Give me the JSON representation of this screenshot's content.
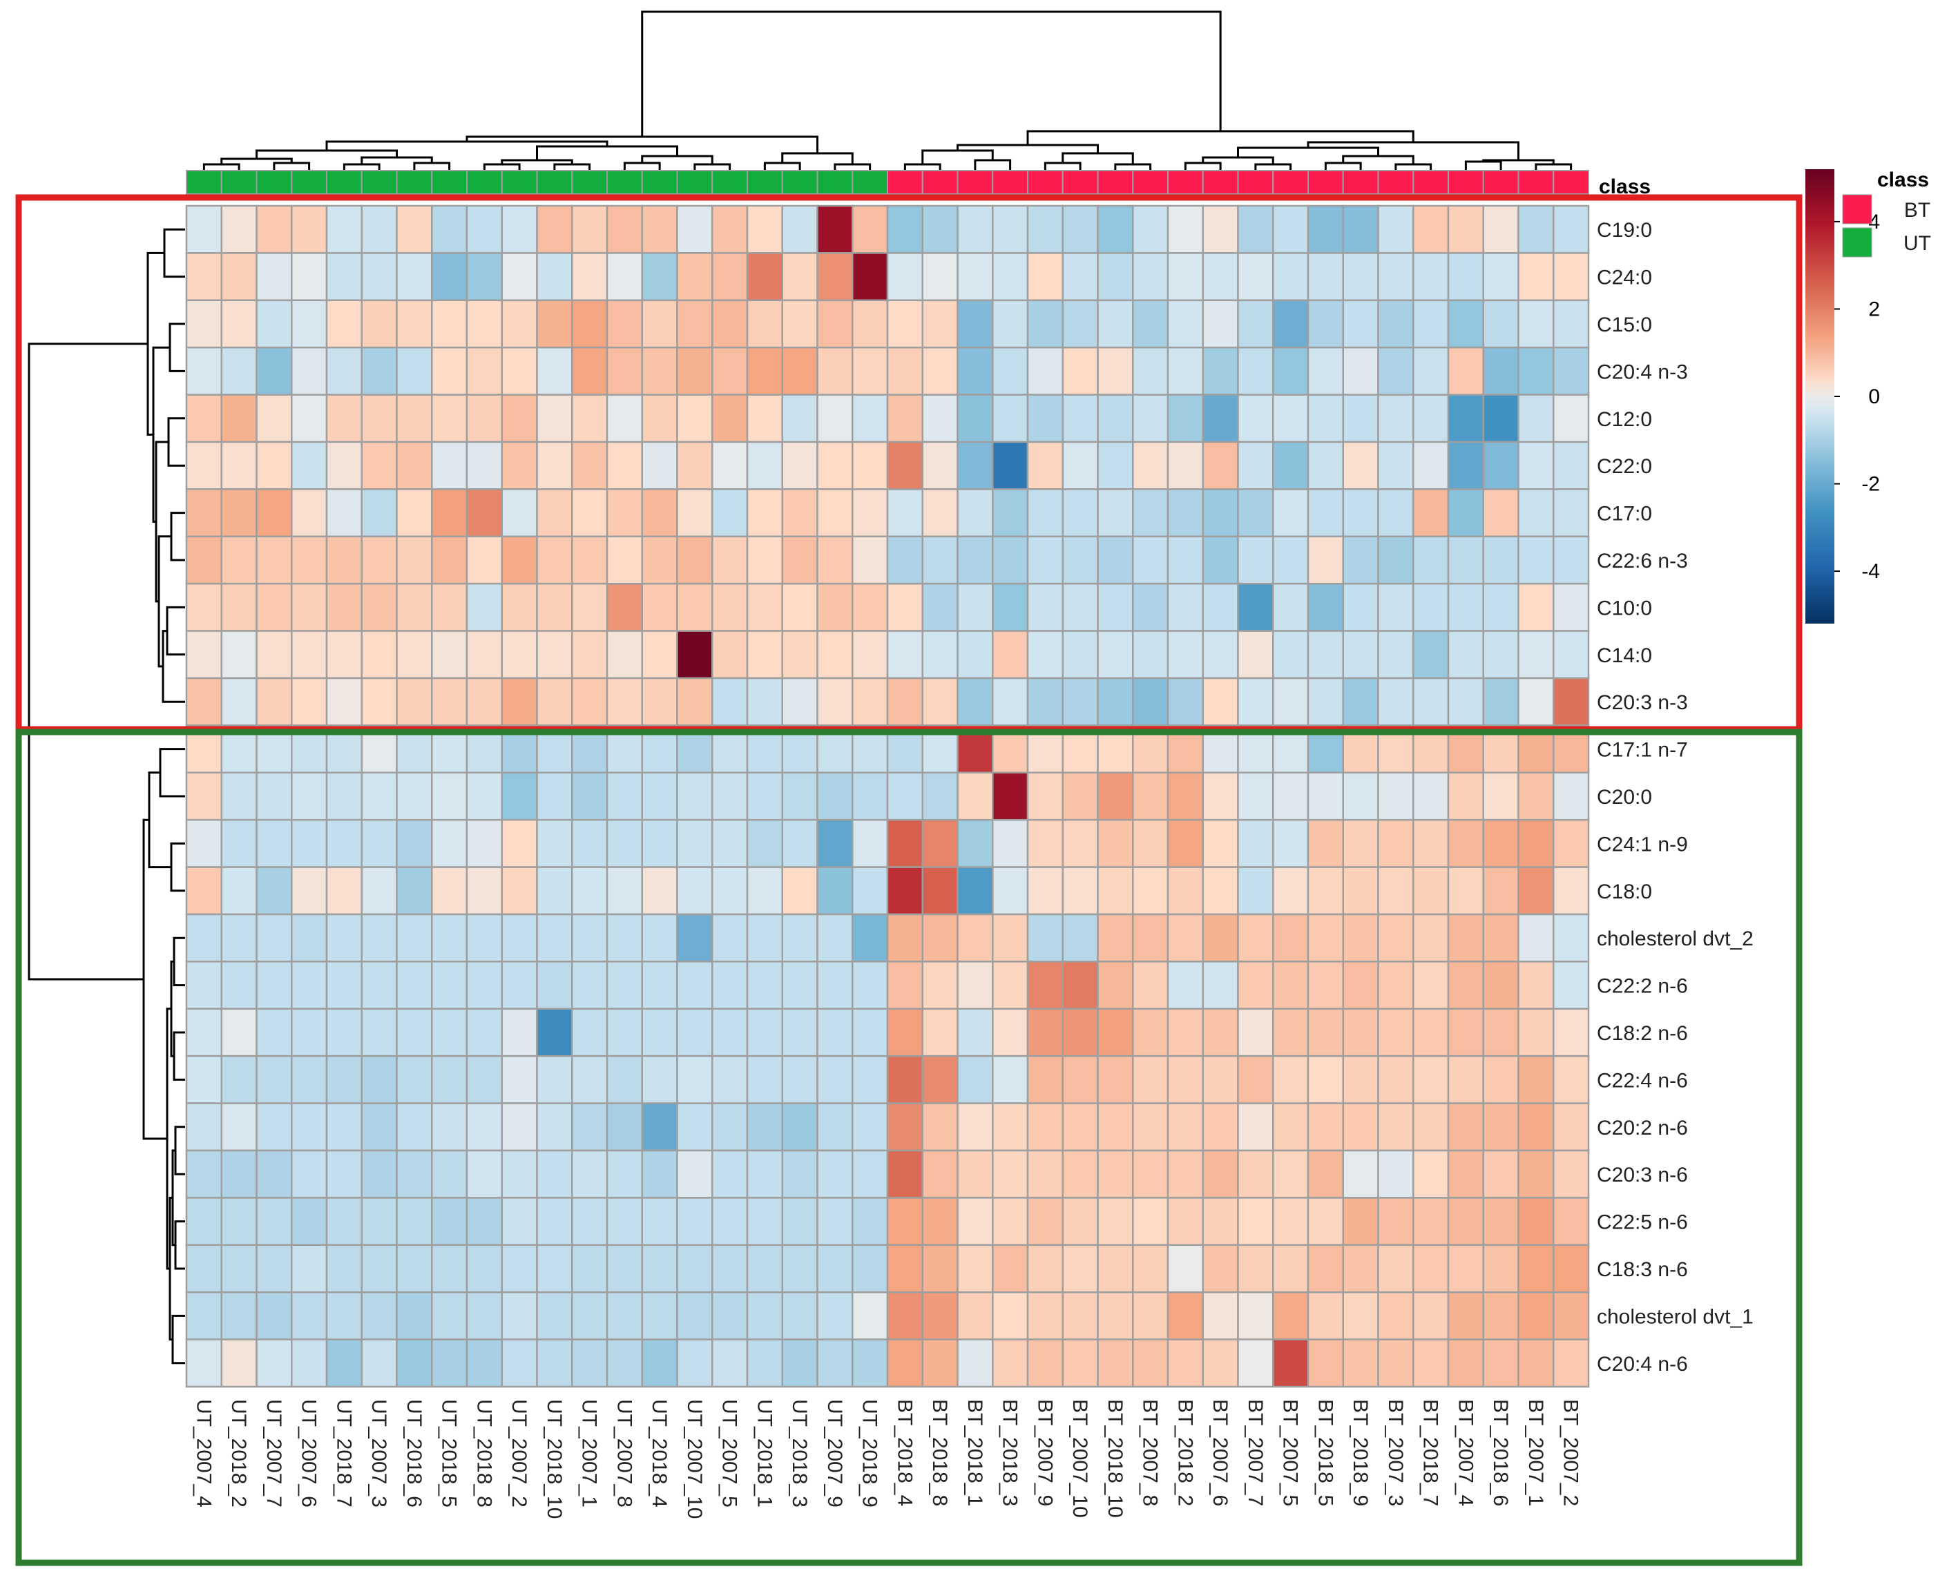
{
  "chart_data": {
    "type": "heatmap",
    "title": "",
    "columns": [
      "UT_2007_4",
      "UT_2018_2",
      "UT_2007_7",
      "UT_2007_6",
      "UT_2018_7",
      "UT_2007_3",
      "UT_2018_6",
      "UT_2018_5",
      "UT_2018_8",
      "UT_2007_2",
      "UT_2018_10",
      "UT_2007_1",
      "UT_2007_8",
      "UT_2018_4",
      "UT_2007_10",
      "UT_2007_5",
      "UT_2018_1",
      "UT_2018_3",
      "UT_2007_9",
      "UT_2018_9",
      "BT_2018_4",
      "BT_2018_8",
      "BT_2018_1",
      "BT_2018_3",
      "BT_2007_9",
      "BT_2007_10",
      "BT_2018_10",
      "BT_2007_8",
      "BT_2018_2",
      "BT_2007_6",
      "BT_2007_7",
      "BT_2007_5",
      "BT_2018_5",
      "BT_2018_9",
      "BT_2007_3",
      "BT_2018_7",
      "BT_2007_4",
      "BT_2018_6",
      "BT_2007_1",
      "BT_2007_2"
    ],
    "column_classes": [
      "UT",
      "UT",
      "UT",
      "UT",
      "UT",
      "UT",
      "UT",
      "UT",
      "UT",
      "UT",
      "UT",
      "UT",
      "UT",
      "UT",
      "UT",
      "UT",
      "UT",
      "UT",
      "UT",
      "UT",
      "BT",
      "BT",
      "BT",
      "BT",
      "BT",
      "BT",
      "BT",
      "BT",
      "BT",
      "BT",
      "BT",
      "BT",
      "BT",
      "BT",
      "BT",
      "BT",
      "BT",
      "BT",
      "BT",
      "BT"
    ],
    "rows": [
      "C19:0",
      "C24:0",
      "C15:0",
      "C20:4 n-3",
      "C12:0",
      "C22:0",
      "C17:0",
      "C22:6 n-3",
      "C10:0",
      "C14:0",
      "C20:3 n-3",
      "C17:1 n-7",
      "C20:0",
      "C24:1 n-9",
      "C18:0",
      "cholesterol dvt_2",
      "C22:2 n-6",
      "C18:2 n-6",
      "C22:4 n-6",
      "C20:2 n-6",
      "C20:3 n-6",
      "C22:5 n-6",
      "C18:3 n-6",
      "cholesterol dvt_1",
      "C20:4 n-6"
    ],
    "values": [
      [
        -0.3,
        0.2,
        0.7,
        0.6,
        -0.4,
        -0.5,
        0.5,
        -0.8,
        -0.6,
        -0.4,
        0.9,
        0.6,
        0.9,
        0.8,
        -0.2,
        0.8,
        0.4,
        -0.5,
        4.3,
        0.9,
        -1.3,
        -1.0,
        -0.5,
        -0.5,
        -0.7,
        -0.8,
        -1.3,
        -0.5,
        -0.1,
        0.2,
        -0.9,
        -0.6,
        -1.5,
        -1.5,
        -0.5,
        0.7,
        0.6,
        0.2,
        -0.8,
        -0.6
      ],
      [
        0.5,
        0.6,
        -0.2,
        -0.1,
        -0.5,
        -0.5,
        -0.4,
        -1.5,
        -1.2,
        -0.1,
        -0.5,
        0.3,
        -0.1,
        -1.1,
        0.8,
        0.9,
        2.1,
        0.5,
        1.7,
        4.5,
        -0.3,
        -0.1,
        -0.3,
        -0.4,
        0.4,
        -0.5,
        -0.7,
        -0.5,
        -0.3,
        -0.4,
        -0.3,
        -0.5,
        -0.5,
        -0.5,
        -0.5,
        -0.5,
        -0.6,
        -0.4,
        0.4,
        0.4
      ],
      [
        0.2,
        0.3,
        -0.5,
        -0.3,
        0.4,
        0.6,
        0.5,
        0.4,
        0.4,
        0.5,
        1.1,
        1.3,
        0.9,
        0.6,
        0.9,
        1.0,
        0.6,
        0.5,
        0.9,
        0.6,
        0.4,
        0.5,
        -1.6,
        -0.5,
        -1.0,
        -0.8,
        -0.5,
        -1.0,
        -0.4,
        -0.2,
        -0.7,
        -1.9,
        -0.9,
        -0.6,
        -1.0,
        -0.6,
        -1.3,
        -0.7,
        -0.4,
        -0.5
      ],
      [
        -0.3,
        -0.5,
        -1.4,
        -0.2,
        -0.5,
        -1.0,
        -0.6,
        0.4,
        0.5,
        0.4,
        -0.3,
        1.3,
        0.9,
        0.8,
        1.1,
        0.9,
        1.3,
        1.3,
        0.6,
        0.5,
        0.6,
        0.4,
        -1.5,
        -0.6,
        -0.2,
        0.4,
        0.3,
        -0.5,
        -0.4,
        -1.1,
        -0.6,
        -1.3,
        -0.4,
        -0.2,
        -0.9,
        -0.5,
        0.7,
        -1.5,
        -1.3,
        -1.0
      ],
      [
        0.7,
        1.1,
        0.3,
        -0.1,
        0.6,
        0.6,
        0.6,
        0.5,
        0.6,
        0.9,
        0.2,
        0.5,
        -0.1,
        0.6,
        0.4,
        1.1,
        0.4,
        -0.5,
        -0.1,
        -0.4,
        0.8,
        -0.2,
        -1.4,
        -0.6,
        -0.9,
        -0.6,
        -0.7,
        -0.5,
        -1.1,
        -2.0,
        -0.4,
        -0.4,
        -0.5,
        -0.6,
        -0.5,
        -0.5,
        -2.4,
        -2.7,
        -0.5,
        -0.1
      ],
      [
        0.3,
        0.3,
        0.4,
        -0.5,
        0.2,
        0.7,
        0.8,
        -0.2,
        -0.2,
        0.8,
        0.3,
        0.8,
        0.4,
        -0.2,
        0.6,
        -0.1,
        -0.3,
        0.2,
        0.4,
        0.4,
        2.0,
        0.2,
        -1.6,
        -3.4,
        0.5,
        -0.3,
        -0.6,
        0.3,
        0.2,
        0.9,
        -0.5,
        -1.4,
        -0.5,
        0.3,
        -0.5,
        -0.2,
        -2.1,
        -1.6,
        -0.4,
        -0.5
      ],
      [
        1.0,
        1.1,
        1.3,
        0.3,
        -0.2,
        -0.7,
        0.4,
        1.4,
        1.9,
        -0.3,
        0.6,
        0.4,
        0.7,
        1.0,
        0.3,
        -0.6,
        0.4,
        0.7,
        0.4,
        0.3,
        -0.4,
        0.3,
        -0.5,
        -1.1,
        -0.6,
        -0.6,
        -0.5,
        -0.8,
        -0.9,
        -1.2,
        -1.0,
        -0.4,
        -0.6,
        -0.6,
        -0.6,
        1.0,
        -1.4,
        0.7,
        -0.5,
        -0.5
      ],
      [
        1.0,
        0.7,
        0.7,
        0.7,
        0.8,
        0.7,
        0.6,
        1.0,
        0.4,
        1.2,
        0.7,
        0.7,
        0.4,
        0.8,
        1.0,
        0.6,
        0.4,
        0.9,
        0.7,
        0.2,
        -0.9,
        -0.7,
        -0.9,
        -1.0,
        -0.6,
        -0.7,
        -0.9,
        -0.6,
        -0.6,
        -1.2,
        -0.6,
        -0.6,
        0.3,
        -0.9,
        -1.1,
        -0.7,
        -0.7,
        -0.7,
        -0.6,
        -0.6
      ],
      [
        0.5,
        0.6,
        0.7,
        0.6,
        0.8,
        0.8,
        0.6,
        0.6,
        -0.5,
        0.6,
        0.6,
        0.5,
        1.6,
        0.7,
        0.7,
        0.6,
        0.5,
        0.4,
        0.8,
        0.7,
        0.4,
        -0.9,
        -0.5,
        -1.3,
        -0.5,
        -0.5,
        -0.6,
        -0.9,
        -0.5,
        -0.6,
        -2.4,
        -0.5,
        -1.5,
        -0.6,
        -0.5,
        -0.6,
        -0.6,
        -0.6,
        0.4,
        -0.2
      ],
      [
        0.2,
        -0.1,
        0.3,
        0.3,
        0.3,
        0.4,
        0.3,
        0.2,
        0.3,
        0.3,
        0.3,
        0.5,
        0.2,
        0.4,
        5.0,
        0.6,
        0.4,
        0.5,
        0.4,
        0.3,
        -0.3,
        -0.4,
        -0.5,
        0.7,
        -0.4,
        -0.5,
        -0.4,
        -0.5,
        -0.4,
        -0.4,
        0.2,
        -0.5,
        -0.5,
        -0.5,
        -0.5,
        -1.2,
        -0.5,
        -0.5,
        -0.3,
        -0.4
      ],
      [
        0.8,
        -0.3,
        0.6,
        0.4,
        0.1,
        0.4,
        0.6,
        0.6,
        0.6,
        1.2,
        0.6,
        0.7,
        0.5,
        0.6,
        0.8,
        -0.6,
        -0.5,
        -0.2,
        0.3,
        0.5,
        0.9,
        0.5,
        -1.2,
        -0.4,
        -1.0,
        -0.9,
        -1.2,
        -1.5,
        -1.0,
        0.4,
        -0.4,
        -0.3,
        -0.5,
        -1.2,
        -0.5,
        -0.5,
        -0.5,
        -1.1,
        -0.1,
        2.3
      ],
      [
        0.4,
        -0.4,
        -0.4,
        -0.5,
        -0.5,
        -0.1,
        -0.5,
        -0.4,
        -0.5,
        -1.0,
        -0.6,
        -0.9,
        -0.5,
        -0.6,
        -0.9,
        -0.5,
        -0.6,
        -0.6,
        -0.5,
        -0.5,
        -0.7,
        -0.4,
        3.3,
        0.7,
        0.3,
        0.4,
        0.4,
        0.6,
        0.9,
        -0.2,
        -0.3,
        -0.3,
        -1.3,
        0.6,
        0.5,
        0.6,
        1.0,
        0.6,
        1.1,
        1.0
      ],
      [
        0.5,
        -0.5,
        -0.5,
        -0.4,
        -0.5,
        -0.4,
        -0.4,
        -0.3,
        -0.4,
        -1.3,
        -0.6,
        -1.0,
        -0.6,
        -0.6,
        -0.5,
        -0.5,
        -0.6,
        -0.7,
        -0.9,
        -0.7,
        -0.6,
        -0.8,
        0.5,
        4.3,
        0.5,
        0.8,
        1.5,
        0.8,
        1.2,
        0.3,
        -0.3,
        -0.2,
        -0.2,
        -0.3,
        -0.2,
        -0.2,
        0.6,
        0.3,
        0.8,
        -0.2
      ],
      [
        -0.2,
        -0.6,
        -0.6,
        -0.6,
        -0.6,
        -0.6,
        -0.9,
        -0.3,
        -0.2,
        0.4,
        -0.5,
        -0.6,
        -0.6,
        -0.6,
        -0.5,
        -0.5,
        -0.8,
        -0.6,
        -2.1,
        -0.3,
        2.6,
        1.9,
        -1.1,
        -0.2,
        0.5,
        0.5,
        0.8,
        0.6,
        1.3,
        0.4,
        -0.5,
        -0.4,
        0.8,
        0.6,
        0.7,
        0.6,
        1.0,
        1.2,
        1.4,
        0.7
      ],
      [
        0.7,
        -0.4,
        -1.0,
        0.2,
        0.3,
        -0.3,
        -1.1,
        0.3,
        0.2,
        0.5,
        -0.5,
        -0.4,
        -0.3,
        0.2,
        -0.4,
        -0.4,
        -0.3,
        0.4,
        -1.4,
        -0.6,
        3.5,
        2.6,
        -2.4,
        -0.3,
        0.3,
        0.3,
        0.5,
        0.4,
        0.6,
        0.4,
        -0.6,
        0.3,
        0.5,
        0.6,
        0.5,
        0.6,
        0.5,
        0.9,
        1.6,
        0.3
      ],
      [
        -0.6,
        -0.6,
        -0.6,
        -0.7,
        -0.6,
        -0.6,
        -0.6,
        -0.6,
        -0.6,
        -0.6,
        -0.6,
        -0.6,
        -0.6,
        -0.6,
        -1.9,
        -0.6,
        -0.6,
        -0.6,
        -0.6,
        -1.7,
        1.1,
        1.0,
        0.7,
        0.6,
        -0.8,
        -0.8,
        0.9,
        0.9,
        0.7,
        1.1,
        0.7,
        0.9,
        0.7,
        0.8,
        0.7,
        0.6,
        1.0,
        1.0,
        -0.2,
        -0.4
      ],
      [
        -0.5,
        -0.6,
        -0.6,
        -0.6,
        -0.6,
        -0.6,
        -0.6,
        -0.6,
        -0.6,
        -0.6,
        -0.7,
        -0.6,
        -0.6,
        -0.6,
        -0.6,
        -0.6,
        -0.6,
        -0.6,
        -0.6,
        -0.6,
        0.9,
        0.5,
        0.2,
        0.5,
        1.9,
        2.1,
        1.0,
        0.6,
        -0.4,
        -0.4,
        0.7,
        0.8,
        0.7,
        0.9,
        0.7,
        0.5,
        1.0,
        1.1,
        0.6,
        -0.4
      ],
      [
        -0.4,
        -0.1,
        -0.6,
        -0.6,
        -0.6,
        -0.6,
        -0.6,
        -0.6,
        -0.6,
        -0.2,
        -2.8,
        -0.6,
        -0.6,
        -0.6,
        -0.6,
        -0.6,
        -0.6,
        -0.6,
        -0.6,
        -0.6,
        1.4,
        0.5,
        -0.5,
        0.3,
        1.5,
        1.6,
        1.4,
        0.8,
        0.7,
        0.8,
        0.2,
        0.8,
        0.8,
        0.8,
        0.7,
        0.7,
        0.9,
        0.9,
        0.6,
        0.3
      ],
      [
        -0.4,
        -0.7,
        -0.7,
        -0.7,
        -0.8,
        -0.9,
        -0.7,
        -0.7,
        -0.7,
        -0.2,
        -0.5,
        -0.5,
        -0.7,
        -0.5,
        -0.4,
        -0.5,
        -0.6,
        -0.6,
        -0.6,
        -0.6,
        2.3,
        1.8,
        -0.7,
        -0.3,
        1.0,
        0.9,
        0.9,
        0.6,
        0.6,
        0.6,
        0.9,
        0.5,
        0.4,
        0.6,
        0.6,
        0.5,
        0.6,
        0.7,
        1.1,
        0.5
      ],
      [
        -0.5,
        -0.3,
        -0.6,
        -0.6,
        -0.6,
        -0.9,
        -0.6,
        -0.5,
        -0.4,
        -0.2,
        -0.5,
        -0.8,
        -1.0,
        -2.0,
        -0.6,
        -0.7,
        -1.0,
        -1.2,
        -0.7,
        -0.6,
        1.8,
        0.8,
        0.3,
        0.5,
        0.7,
        0.7,
        0.7,
        0.6,
        0.6,
        0.7,
        0.2,
        0.6,
        0.7,
        0.7,
        0.6,
        0.6,
        1.0,
        1.0,
        1.2,
        0.6
      ],
      [
        -0.8,
        -0.9,
        -0.9,
        -0.6,
        -0.6,
        -0.9,
        -0.8,
        -0.7,
        -0.4,
        -0.5,
        -0.6,
        -0.5,
        -0.6,
        -0.9,
        -0.2,
        -0.6,
        -0.6,
        -0.8,
        -0.6,
        -0.6,
        2.4,
        0.9,
        0.6,
        0.5,
        0.6,
        0.7,
        0.7,
        0.7,
        0.7,
        1.0,
        0.6,
        0.5,
        1.0,
        -0.1,
        -0.2,
        0.4,
        1.0,
        0.7,
        1.1,
        0.6
      ],
      [
        -0.7,
        -0.7,
        -0.7,
        -0.9,
        -0.7,
        -0.7,
        -0.7,
        -0.9,
        -0.9,
        -0.5,
        -0.6,
        -0.6,
        -0.6,
        -0.6,
        -0.6,
        -0.6,
        -0.6,
        -0.7,
        -0.6,
        -0.8,
        1.3,
        1.2,
        0.3,
        0.5,
        0.8,
        0.6,
        0.5,
        0.4,
        0.6,
        0.6,
        0.4,
        0.5,
        0.5,
        1.1,
        0.9,
        0.8,
        1.0,
        1.0,
        1.4,
        0.9
      ],
      [
        -0.7,
        -0.7,
        -0.7,
        -0.5,
        -0.7,
        -0.7,
        -0.7,
        -0.7,
        -0.7,
        -0.6,
        -0.6,
        -0.7,
        -0.7,
        -0.7,
        -0.7,
        -0.7,
        -0.7,
        -0.7,
        -0.7,
        -0.8,
        1.3,
        1.1,
        0.5,
        0.9,
        0.6,
        0.5,
        0.6,
        0.6,
        0.0,
        0.8,
        0.6,
        0.6,
        0.9,
        0.8,
        0.6,
        0.7,
        0.7,
        0.8,
        1.3,
        1.3
      ],
      [
        -0.7,
        -0.8,
        -0.9,
        -0.7,
        -0.7,
        -0.8,
        -1.0,
        -0.7,
        -0.7,
        -0.5,
        -0.7,
        -0.7,
        -0.7,
        -0.7,
        -0.8,
        -0.8,
        -0.7,
        -0.7,
        -0.6,
        -0.1,
        1.7,
        1.5,
        0.6,
        0.4,
        0.6,
        0.6,
        0.6,
        0.6,
        1.3,
        0.2,
        0.1,
        1.2,
        0.6,
        0.5,
        0.7,
        0.6,
        1.1,
        1.0,
        1.3,
        1.1
      ],
      [
        -0.3,
        0.2,
        -0.4,
        -0.5,
        -1.2,
        -0.5,
        -1.2,
        -1.0,
        -1.0,
        -0.6,
        -0.7,
        -0.8,
        -0.8,
        -1.2,
        -0.6,
        -0.5,
        -0.7,
        -1.0,
        -0.8,
        -0.9,
        1.3,
        1.1,
        -0.2,
        0.6,
        0.8,
        0.7,
        0.8,
        0.8,
        0.7,
        0.6,
        0.0,
        3.0,
        0.9,
        0.8,
        0.8,
        0.7,
        1.0,
        0.9,
        1.0,
        0.7
      ]
    ],
    "class_legend_title": "class",
    "class_legend": [
      {
        "label": "BT",
        "color": "#fd1b4e"
      },
      {
        "label": "UT",
        "color": "#12ad3d"
      }
    ],
    "class_bar_label": "class",
    "color_scale": {
      "min": -5.2,
      "max": 5.2,
      "ticks": [
        "4",
        "2",
        "0",
        "-2",
        "-4"
      ],
      "tick_values": [
        4,
        2,
        0,
        -2,
        -4
      ],
      "stops": [
        {
          "value": -5.2,
          "color": "#053061"
        },
        {
          "value": -3.9,
          "color": "#2166ac"
        },
        {
          "value": -2.6,
          "color": "#4393c3"
        },
        {
          "value": -1.3,
          "color": "#92c5de"
        },
        {
          "value": -0.4,
          "color": "#d1e5f0"
        },
        {
          "value": 0.0,
          "color": "#ebebeb"
        },
        {
          "value": 0.4,
          "color": "#fddbc7"
        },
        {
          "value": 1.3,
          "color": "#f4a582"
        },
        {
          "value": 2.6,
          "color": "#d6604d"
        },
        {
          "value": 3.9,
          "color": "#b2182b"
        },
        {
          "value": 5.2,
          "color": "#67001f"
        }
      ]
    },
    "row_groups": [
      {
        "name": "top-cluster",
        "rows": [
          0,
          10
        ],
        "box_color": "#e02020"
      },
      {
        "name": "bottom-cluster",
        "rows": [
          11,
          24
        ],
        "box_color": "#2e7d2e"
      }
    ],
    "grid": true,
    "legend_position": "right"
  }
}
